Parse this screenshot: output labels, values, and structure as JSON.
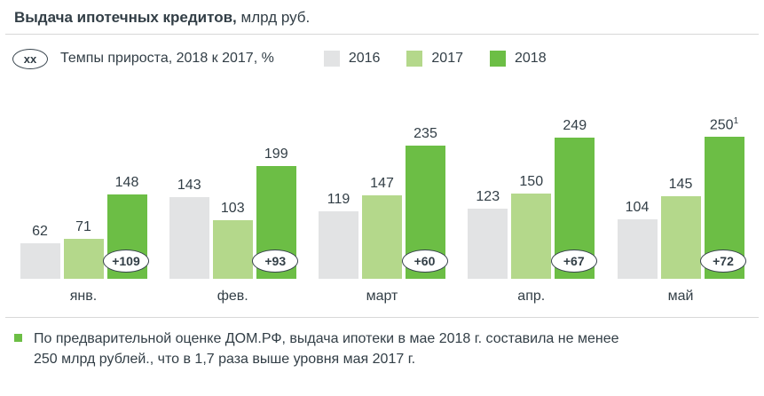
{
  "header": {
    "title_bold": "Выдача ипотечных кредитов,",
    "title_regular": " млрд руб."
  },
  "legend": {
    "growth_badge": "xx",
    "growth_label": "Темпы прироста, 2018 к 2017, %"
  },
  "colors": {
    "bar_2016": "#e2e3e4",
    "bar_2017": "#b4d88b",
    "bar_2018": "#6cbe45",
    "text": "#323e46",
    "accent_green": "#6cbe45"
  },
  "chart_data": {
    "type": "bar",
    "title": "Выдача ипотечных кредитов, млрд руб.",
    "xlabel": "",
    "ylabel": "млрд руб.",
    "ylim": [
      0,
      260
    ],
    "grid": false,
    "legend_position": "top",
    "categories": [
      "янв.",
      "фев.",
      "март",
      "апр.",
      "май"
    ],
    "series": [
      {
        "name": "2016",
        "color": "#e2e3e4",
        "values": [
          62,
          143,
          119,
          123,
          104
        ]
      },
      {
        "name": "2017",
        "color": "#b4d88b",
        "values": [
          71,
          103,
          147,
          150,
          145
        ]
      },
      {
        "name": "2018",
        "color": "#6cbe45",
        "values": [
          148,
          199,
          235,
          249,
          250
        ]
      }
    ],
    "growth_labels": [
      "+109",
      "+93",
      "+60",
      "+67",
      "+72"
    ],
    "growth_label_series": "2018",
    "last_value_superscript": "1"
  },
  "footnote": {
    "text": "По предварительной оценке ДОМ.РФ, выдача ипотеки в мае 2018 г. составила не менее 250 млрд рублей., что в 1,7 раза выше уровня мая 2017 г."
  }
}
